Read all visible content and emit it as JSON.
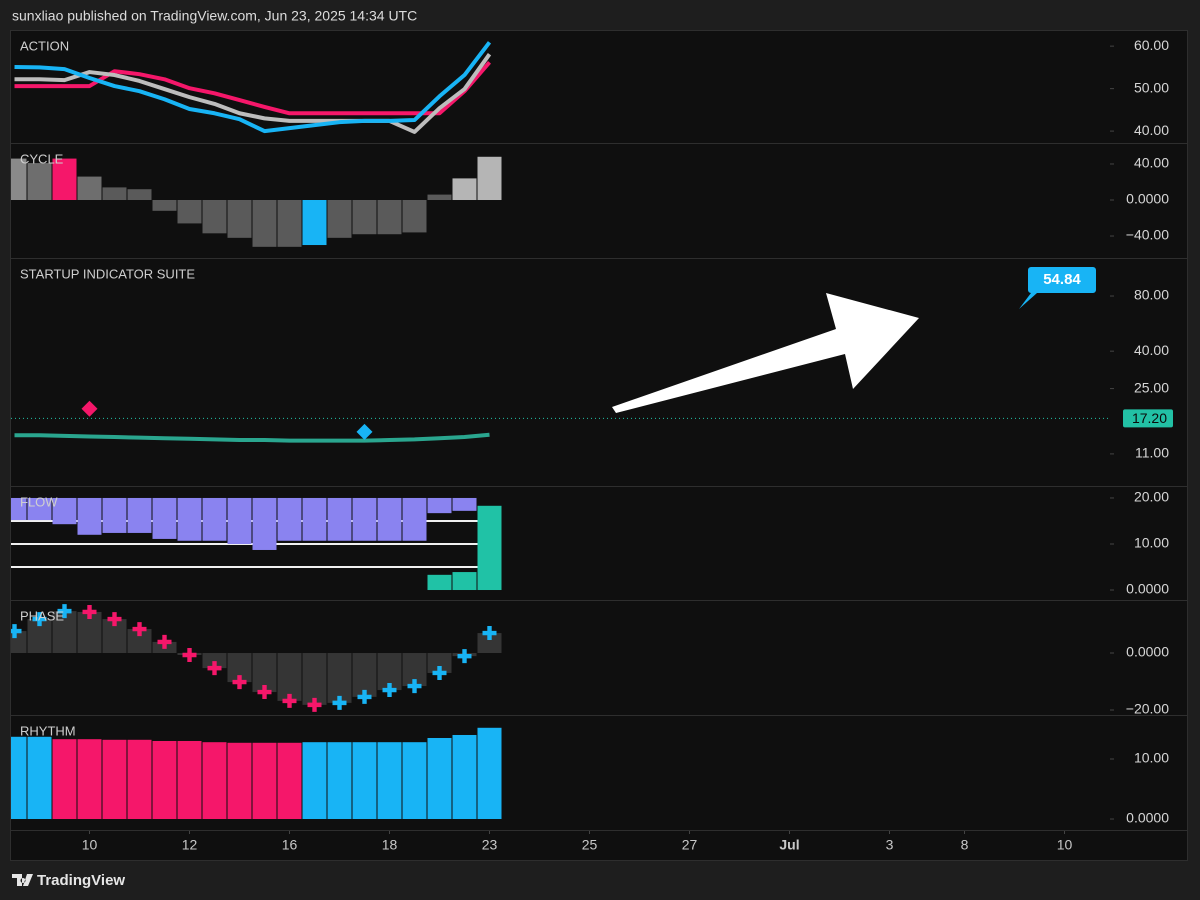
{
  "header": "sunxliao published on TradingView.com, Jun 23, 2025 14:34 UTC",
  "footer": "TradingView",
  "chart_data": [
    {
      "type": "line",
      "title": "ACTION",
      "ylim": [
        37.2,
        63.8
      ],
      "yticks": [
        {
          "value": 60,
          "label": "60.00"
        },
        {
          "value": 50,
          "label": "50.00"
        },
        {
          "value": 40,
          "label": "40.00"
        }
      ],
      "series": [
        {
          "type": "line",
          "color": "#f5176a",
          "values": [
            50.6,
            50.6,
            50.6,
            50.6,
            54.1,
            53.4,
            52.2,
            50.1,
            48.9,
            47.3,
            45.7,
            44.2,
            44.2,
            44.2,
            44.2,
            44.2,
            44.2,
            44.2,
            49.4,
            56.2
          ]
        },
        {
          "type": "line",
          "color": "#bdbdbd",
          "values": [
            52.2,
            52.2,
            52.0,
            53.9,
            53.2,
            51.8,
            49.9,
            48.0,
            46.4,
            44.2,
            43.0,
            42.4,
            42.4,
            42.4,
            42.4,
            42.4,
            39.8,
            45.4,
            49.9,
            58.1
          ]
        },
        {
          "type": "line",
          "color": "#18b4f5",
          "values": [
            55.1,
            55.0,
            54.6,
            52.5,
            50.6,
            49.4,
            47.5,
            45.2,
            44.2,
            42.8,
            40.0,
            40.7,
            41.4,
            42.1,
            42.4,
            42.4,
            42.6,
            48.2,
            53.2,
            60.9
          ]
        }
      ]
    },
    {
      "type": "bar",
      "title": "CYCLE",
      "ylim": [
        -64.4,
        63.3
      ],
      "yticks": [
        {
          "value": 40,
          "label": "40.00"
        },
        {
          "value": 0,
          "label": "0.0000"
        },
        {
          "value": -40,
          "label": "−40.00"
        }
      ],
      "series": [
        {
          "type": "bar",
          "color": "#5a5a5a",
          "colors": [
            "#8a8a8a",
            "#6e6e6e",
            "#f5176a",
            "#6e6e6e",
            "#5a5a5a",
            "#5a5a5a",
            "#5a5a5a",
            "#5a5a5a",
            "#5a5a5a",
            "#5a5a5a",
            "#5a5a5a",
            "#5a5a5a",
            "#18b4f5",
            "#5a5a5a",
            "#5a5a5a",
            "#5a5a5a",
            "#5a5a5a",
            "#5a5a5a",
            "#b5b5b5",
            "#b5b5b5"
          ],
          "values": [
            46,
            41,
            46,
            26,
            14,
            12,
            -12,
            -26,
            -37,
            -42,
            -52,
            -52,
            -50,
            -42,
            -38,
            -38,
            -36,
            6,
            24,
            48
          ]
        }
      ]
    },
    {
      "type": "line",
      "title": "STARTUP INDICATOR SUITE",
      "log": true,
      "ylim": [
        7.35,
        129
      ],
      "yticks": [
        {
          "value": 80,
          "label": "80.00"
        },
        {
          "value": 40,
          "label": "40.00"
        },
        {
          "value": 25,
          "label": "25.00"
        },
        {
          "value": 11,
          "label": "11.00"
        }
      ],
      "price_label": {
        "value": 17.2,
        "label": "17.20",
        "color": "#22c1a5"
      },
      "callout": 54.84,
      "callout_color": "#18b4f5",
      "series": [
        {
          "type": "line",
          "color": "#2aa68f",
          "values": [
            13.9,
            13.9,
            13.8,
            13.7,
            13.6,
            13.5,
            13.4,
            13.3,
            13.2,
            13.1,
            13.1,
            13.0,
            13.0,
            13.0,
            13.0,
            13.1,
            13.2,
            13.4,
            13.6,
            14.0
          ]
        },
        {
          "type": "diamond",
          "color": "#f5176a",
          "values": [
            null,
            null,
            null,
            19.4,
            null,
            null,
            null,
            null,
            null,
            null,
            null,
            null,
            null,
            null,
            null,
            null,
            null,
            null,
            null,
            null
          ]
        },
        {
          "type": "diamond",
          "color": "#18b4f5",
          "values": [
            null,
            null,
            null,
            null,
            null,
            null,
            null,
            null,
            null,
            null,
            null,
            null,
            null,
            null,
            14.5,
            null,
            null,
            null,
            null,
            null
          ]
        }
      ]
    },
    {
      "type": "bar",
      "title": "FLOW",
      "ylim": [
        -2.17,
        22.6
      ],
      "yticks": [
        {
          "value": 20,
          "label": "20.00"
        },
        {
          "value": 10,
          "label": "10.00"
        },
        {
          "value": 0,
          "label": "0.0000"
        }
      ],
      "levels": [
        15,
        10,
        5
      ],
      "level_color": "#f0f0f0",
      "series": [
        {
          "type": "bar",
          "color": "#8a83f0",
          "base": 20,
          "values": [
            15.2,
            15.2,
            14.3,
            12.0,
            12.4,
            12.4,
            11.1,
            10.7,
            10.7,
            10.0,
            8.7,
            10.7,
            10.7,
            10.7,
            10.7,
            10.7,
            10.7,
            16.7,
            17.2,
            null
          ]
        },
        {
          "type": "bar",
          "color": "#20c2a6",
          "values": [
            null,
            null,
            null,
            null,
            null,
            null,
            null,
            null,
            null,
            null,
            null,
            null,
            null,
            null,
            null,
            null,
            null,
            3.3,
            3.9,
            18.3
          ]
        }
      ]
    },
    {
      "type": "bar",
      "title": "PHASE",
      "ylim": [
        -21.75,
        18.6
      ],
      "yticks": [
        {
          "value": 0,
          "label": "0.0000"
        },
        {
          "value": -20,
          "label": "−20.00"
        }
      ],
      "series": [
        {
          "type": "bar",
          "color": "#353535",
          "values": [
            7.7,
            11.9,
            14.7,
            14.4,
            11.9,
            8.4,
            3.9,
            -0.7,
            -5.3,
            -10.2,
            -13.7,
            -16.8,
            -18.2,
            -17.5,
            -15.4,
            -13.0,
            -11.6,
            -7.0,
            -1.1,
            7.0
          ]
        },
        {
          "type": "cross",
          "color": "#18b4f5",
          "colors": [
            "#18b4f5",
            "#18b4f5",
            "#18b4f5",
            "#f5176a",
            "#f5176a",
            "#f5176a",
            "#f5176a",
            "#f5176a",
            "#f5176a",
            "#f5176a",
            "#f5176a",
            "#f5176a",
            "#f5176a",
            "#18b4f5",
            "#18b4f5",
            "#18b4f5",
            "#18b4f5",
            "#18b4f5",
            "#18b4f5",
            "#18b4f5"
          ],
          "values": [
            7.7,
            11.9,
            14.7,
            14.4,
            11.9,
            8.4,
            3.9,
            -0.7,
            -5.3,
            -10.2,
            -13.7,
            -16.8,
            -18.2,
            -17.5,
            -15.4,
            -13.0,
            -11.6,
            -7.0,
            -1.1,
            7.0
          ]
        }
      ]
    },
    {
      "type": "bar",
      "title": "RHYTHM",
      "ylim": [
        -1.83,
        17.33
      ],
      "yticks": [
        {
          "value": 10,
          "label": "10.00"
        },
        {
          "value": 0,
          "label": "0.0000"
        }
      ],
      "xlim": [
        -0.14,
        43.82
      ],
      "xticks": [
        {
          "value": 3,
          "label": "10"
        },
        {
          "value": 7,
          "label": "12"
        },
        {
          "value": 11,
          "label": "16"
        },
        {
          "value": 15,
          "label": "18"
        },
        {
          "value": 19,
          "label": "23"
        },
        {
          "value": 23,
          "label": "25"
        },
        {
          "value": 27,
          "label": "27"
        },
        {
          "value": 31,
          "label": "Jul"
        },
        {
          "value": 35,
          "label": "3"
        },
        {
          "value": 38,
          "label": "8"
        },
        {
          "value": 42,
          "label": "10"
        }
      ],
      "series": [
        {
          "type": "bar",
          "color": "#18b4f5",
          "colors": [
            "#18b4f5",
            "#18b4f5",
            "#f5176a",
            "#f5176a",
            "#f5176a",
            "#f5176a",
            "#f5176a",
            "#f5176a",
            "#f5176a",
            "#f5176a",
            "#f5176a",
            "#f5176a",
            "#18b4f5",
            "#18b4f5",
            "#18b4f5",
            "#18b4f5",
            "#18b4f5",
            "#18b4f5",
            "#18b4f5",
            "#18b4f5"
          ],
          "values": [
            13.7,
            13.7,
            13.3,
            13.3,
            13.2,
            13.2,
            13.0,
            13.0,
            12.8,
            12.7,
            12.7,
            12.7,
            12.8,
            12.8,
            12.8,
            12.8,
            12.8,
            13.5,
            14.0,
            15.2
          ]
        }
      ]
    }
  ]
}
